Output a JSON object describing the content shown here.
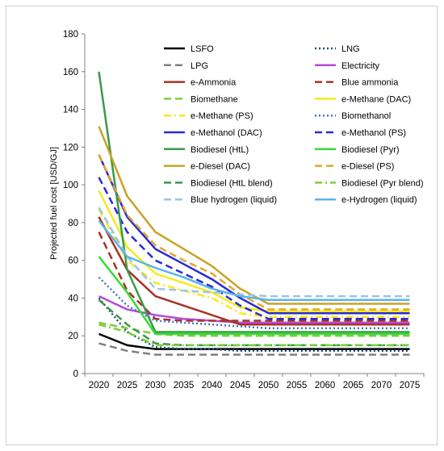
{
  "chart_data": {
    "type": "line",
    "title": "",
    "xlabel": "",
    "ylabel": "Projected fuel cost [USD/GJ]",
    "x": [
      2020,
      2025,
      2030,
      2035,
      2040,
      2045,
      2050,
      2055,
      2060,
      2065,
      2070,
      2075
    ],
    "ylim": [
      0,
      180
    ],
    "yticks": [
      0,
      20,
      40,
      60,
      80,
      100,
      120,
      140,
      160,
      180
    ],
    "grid": false,
    "legend": "inside top-right, two columns",
    "series": [
      {
        "name": "LSFO",
        "color": "#000000",
        "dash": "solid",
        "values": [
          21,
          15,
          13,
          13,
          13,
          13,
          13,
          13,
          13,
          13,
          13,
          13
        ]
      },
      {
        "name": "LNG",
        "color": "#1f4e79",
        "dash": "dot",
        "values": [
          40,
          22,
          14,
          13,
          13,
          12,
          12,
          12,
          12,
          12,
          12,
          12
        ]
      },
      {
        "name": "LPG",
        "color": "#808080",
        "dash": "dash",
        "values": [
          16,
          12,
          10,
          10,
          10,
          10,
          10,
          10,
          10,
          10,
          10,
          10
        ]
      },
      {
        "name": "Electricity",
        "color": "#b14cdb",
        "dash": "solid",
        "values": [
          41,
          34,
          31,
          29,
          28,
          27,
          27,
          27,
          27,
          27,
          27,
          27
        ]
      },
      {
        "name": "e-Ammonia",
        "color": "#a93226",
        "dash": "solid",
        "values": [
          83,
          55,
          41,
          36,
          31,
          26,
          26,
          26,
          26,
          26,
          26,
          26
        ]
      },
      {
        "name": "Blue ammonia",
        "color": "#a93226",
        "dash": "dash",
        "values": [
          75,
          44,
          29,
          28,
          28,
          28,
          28,
          28,
          28,
          28,
          28,
          28
        ]
      },
      {
        "name": "Biomethane",
        "color": "#7dce3c",
        "dash": "dash",
        "values": [
          27,
          24,
          21,
          20,
          20,
          20,
          20,
          20,
          20,
          20,
          20,
          20
        ]
      },
      {
        "name": "e-Methane (DAC)",
        "color": "#f5ea1c",
        "dash": "solid",
        "values": [
          97,
          67,
          53,
          48,
          43,
          35,
          33,
          33,
          33,
          33,
          33,
          33
        ]
      },
      {
        "name": "e-Methane (PS)",
        "color": "#f5ea1c",
        "dash": "dashdot",
        "values": [
          87,
          60,
          48,
          44,
          40,
          32,
          30,
          30,
          30,
          30,
          30,
          30
        ]
      },
      {
        "name": "Biomethanol",
        "color": "#4472c4",
        "dash": "dot",
        "values": [
          51,
          36,
          28,
          27,
          26,
          25,
          24,
          24,
          24,
          24,
          24,
          24
        ]
      },
      {
        "name": "e-Methanol (DAC)",
        "color": "#2b2bd6",
        "dash": "solid",
        "values": [
          116,
          83,
          66,
          58,
          50,
          40,
          32,
          32,
          32,
          32,
          32,
          32
        ]
      },
      {
        "name": "e-Methanol (PS)",
        "color": "#2b2bd6",
        "dash": "dash",
        "values": [
          104,
          75,
          60,
          53,
          46,
          36,
          29,
          29,
          29,
          29,
          29,
          29
        ]
      },
      {
        "name": "Biodiesel (HtL)",
        "color": "#3a9a46",
        "dash": "solid",
        "values": [
          160,
          55,
          22,
          22,
          22,
          22,
          22,
          22,
          22,
          22,
          22,
          22
        ]
      },
      {
        "name": "Biodiesel (Pyr)",
        "color": "#33dd33",
        "dash": "solid",
        "values": [
          62,
          43,
          21,
          21,
          21,
          21,
          21,
          21,
          21,
          21,
          21,
          21
        ]
      },
      {
        "name": "e-Diesel (DAC)",
        "color": "#c9a227",
        "dash": "solid",
        "values": [
          131,
          94,
          75,
          66,
          57,
          45,
          37,
          37,
          37,
          37,
          37,
          37
        ]
      },
      {
        "name": "e-Diesel (PS)",
        "color": "#e0a828",
        "dash": "dash",
        "values": [
          116,
          84,
          68,
          60,
          53,
          42,
          34,
          34,
          34,
          34,
          34,
          34
        ]
      },
      {
        "name": "Biodiesel (HtL blend)",
        "color": "#3a9a46",
        "dash": "dash",
        "values": [
          39,
          26,
          16,
          15,
          15,
          15,
          15,
          15,
          15,
          15,
          15,
          15
        ]
      },
      {
        "name": "Biodiesel (Pyr blend)",
        "color": "#7dce3c",
        "dash": "dashdot",
        "values": [
          26,
          22,
          15,
          15,
          15,
          15,
          15,
          15,
          15,
          15,
          15,
          15
        ]
      },
      {
        "name": "Blue hydrogen (liquid)",
        "color": "#9dc3e6",
        "dash": "dash",
        "values": [
          88,
          62,
          45,
          44,
          43,
          42,
          41,
          41,
          41,
          41,
          41,
          41
        ]
      },
      {
        "name": "e-Hydrogen (liquid)",
        "color": "#5ab4e8",
        "dash": "solid",
        "values": [
          81,
          62,
          56,
          51,
          45,
          41,
          39,
          39,
          39,
          39,
          39,
          39
        ]
      }
    ]
  }
}
